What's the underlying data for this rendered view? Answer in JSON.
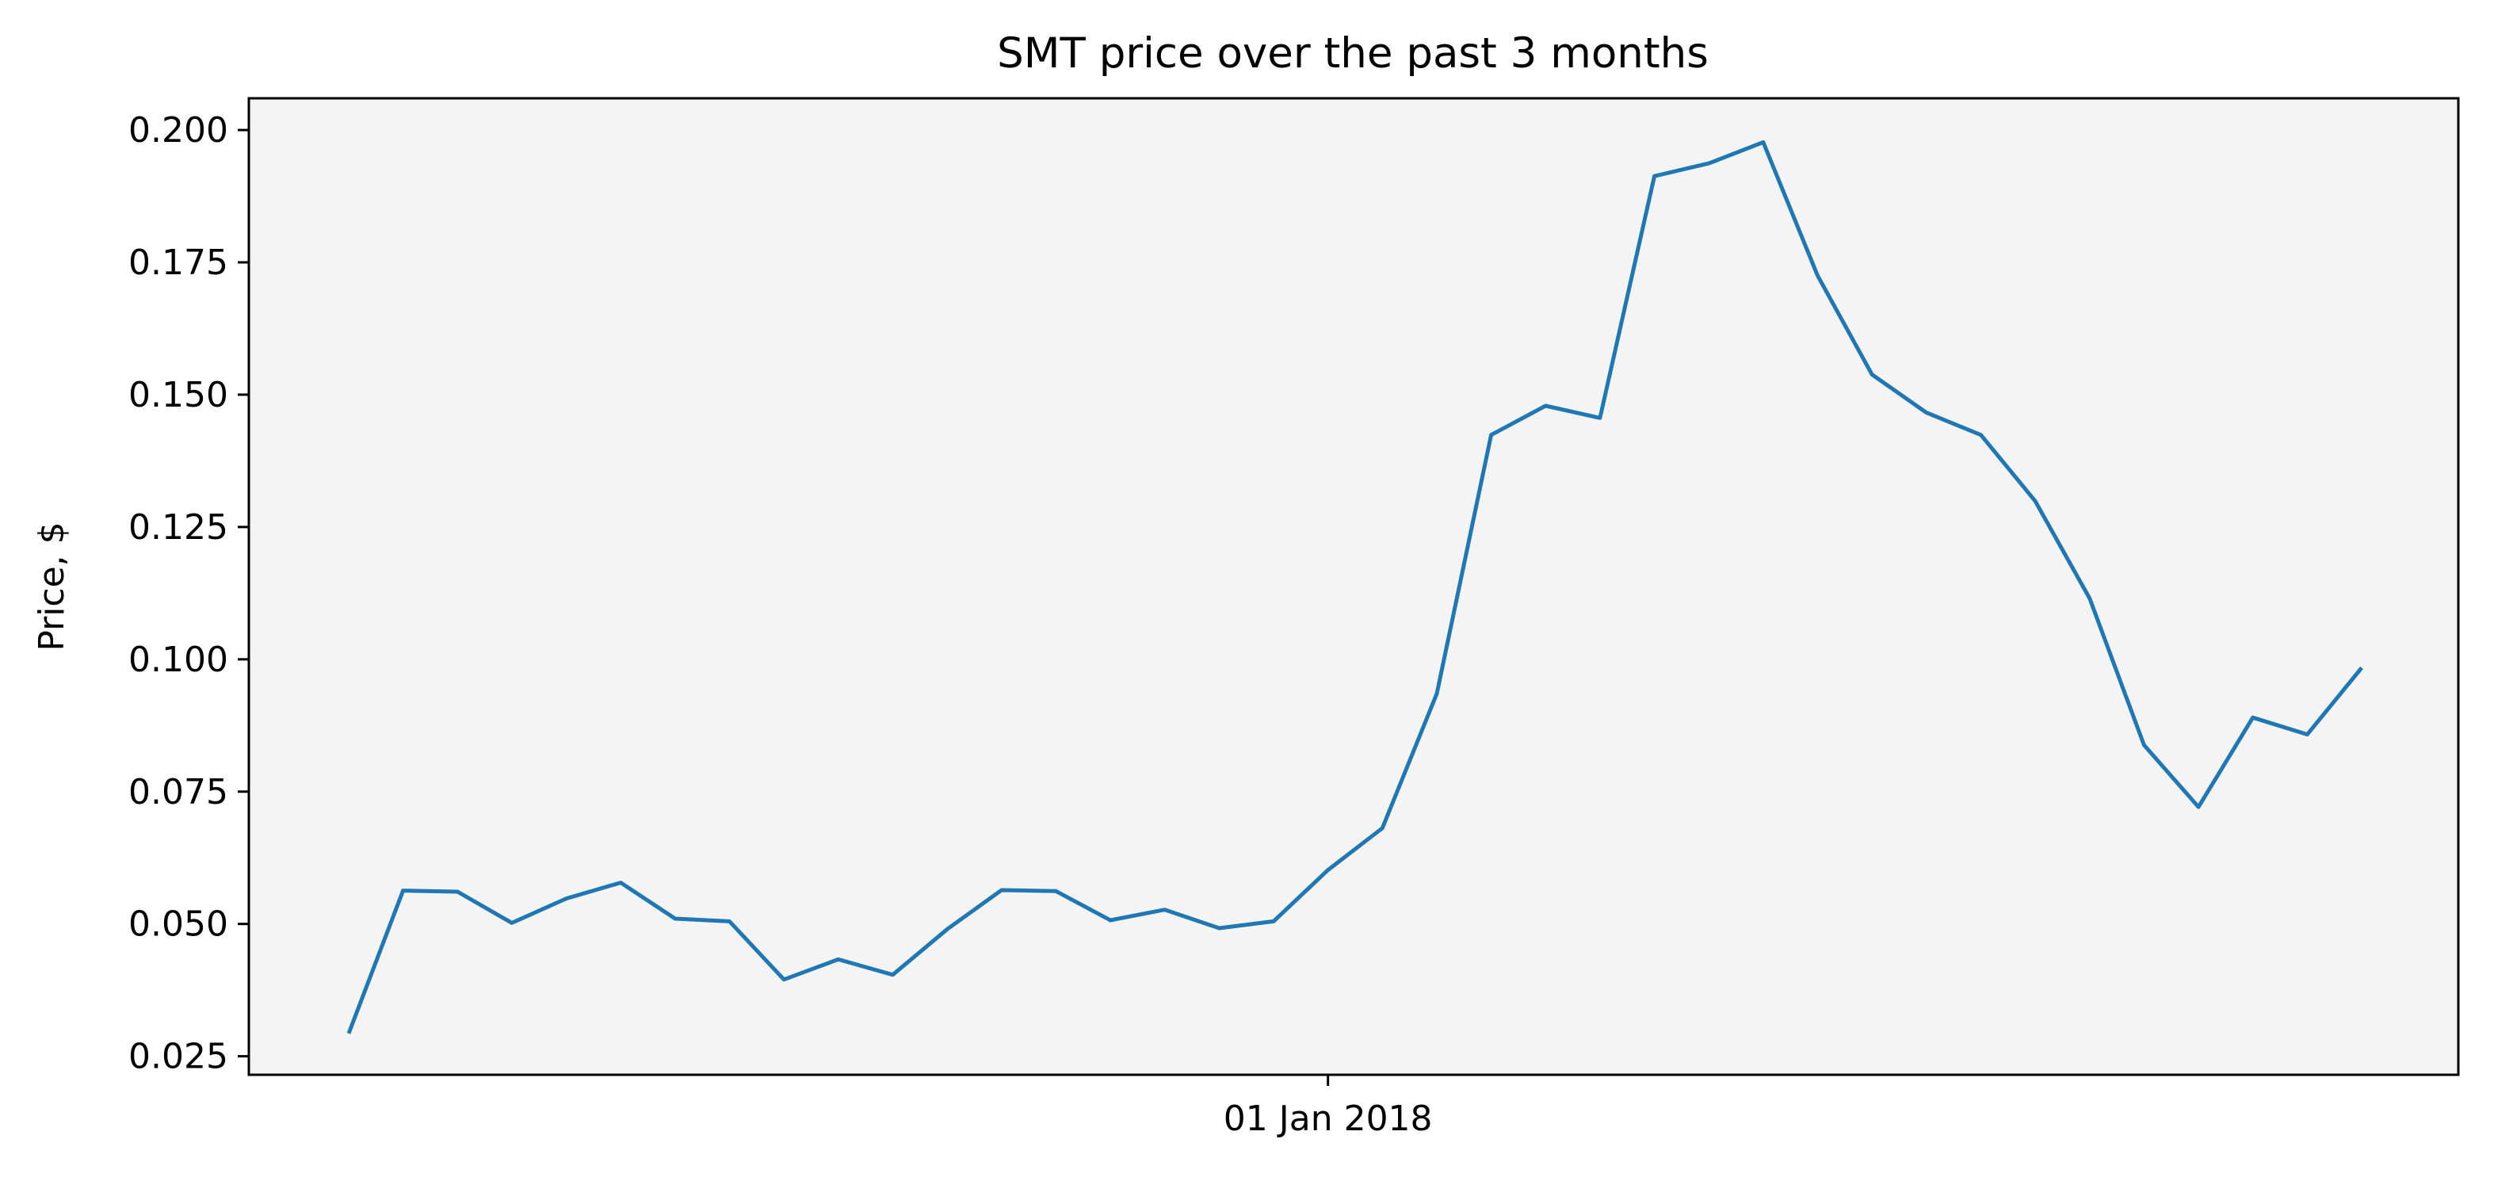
{
  "chart_data": {
    "type": "line",
    "title": "SMT price over the past 3 months",
    "xlabel": "",
    "ylabel": "Price, $",
    "x_tick_labels": [
      "01 Jan 2018"
    ],
    "x_tick_index": 18,
    "ylim": [
      0.0215,
      0.206
    ],
    "y_ticks": [
      0.025,
      0.05,
      0.075,
      0.1,
      0.125,
      0.15,
      0.175,
      0.2
    ],
    "y_tick_labels": [
      "0.025",
      "0.050",
      "0.075",
      "0.100",
      "0.125",
      "0.150",
      "0.175",
      "0.200"
    ],
    "grid": false,
    "background_color": "#f4f4f4",
    "line_color": "#1f77b4",
    "series": [
      {
        "name": "SMT",
        "values": [
          0.0293,
          0.0563,
          0.0561,
          0.0502,
          0.0548,
          0.0578,
          0.051,
          0.0505,
          0.0395,
          0.0433,
          0.0404,
          0.049,
          0.0564,
          0.0562,
          0.0507,
          0.0527,
          0.0492,
          0.0505,
          0.0602,
          0.0681,
          0.0935,
          0.1424,
          0.1479,
          0.1456,
          0.1913,
          0.1937,
          0.1977,
          0.1725,
          0.1538,
          0.1466,
          0.1424,
          0.1299,
          0.1115,
          0.0838,
          0.0721,
          0.089,
          0.0858,
          0.0984
        ]
      }
    ]
  }
}
